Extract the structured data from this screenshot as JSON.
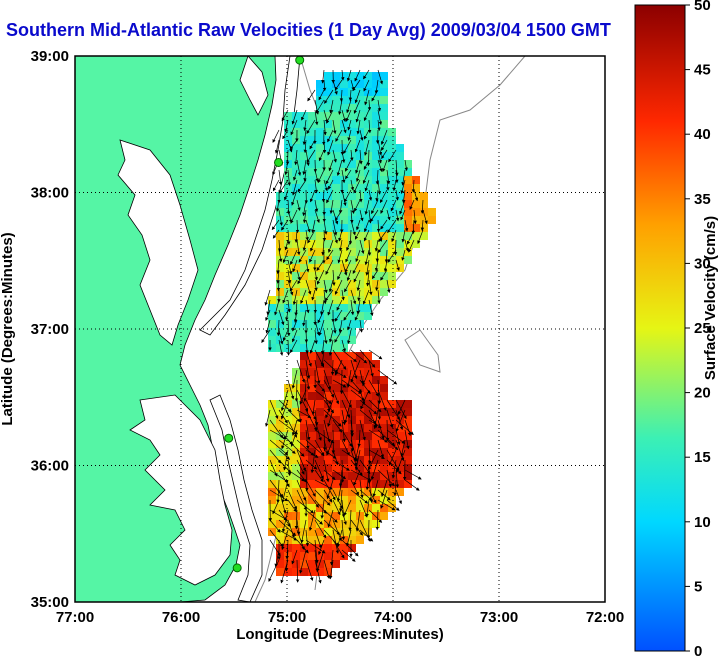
{
  "title": "Southern Mid-Atlantic Raw Velocities (1 Day Avg) 2009/03/04 1500 GMT",
  "map": {
    "xlabel": "Longitude (Degrees:Minutes)",
    "ylabel": "Latitude (Degrees:Minutes)",
    "lon_ticks": [
      "77:00",
      "76:00",
      "75:00",
      "74:00",
      "73:00",
      "72:00"
    ],
    "lat_ticks": [
      "39:00",
      "38:00",
      "37:00",
      "36:00",
      "35:00"
    ],
    "lon_range_deg_west": [
      77,
      72
    ],
    "lat_range_deg": [
      35,
      39
    ],
    "grid": true,
    "land_color": "#55f5a5",
    "stations": [
      {
        "lon": -74.88,
        "lat": 38.97
      },
      {
        "lon": -75.08,
        "lat": 38.22
      },
      {
        "lon": -75.55,
        "lat": 36.2
      },
      {
        "lon": -75.47,
        "lat": 35.25
      }
    ]
  },
  "colorbar": {
    "label": "Surface Velocity (cm/s)",
    "min": 0,
    "max": 50,
    "ticks": [
      "0",
      "5",
      "10",
      "15",
      "20",
      "25",
      "30",
      "35",
      "40",
      "45",
      "50"
    ]
  }
}
